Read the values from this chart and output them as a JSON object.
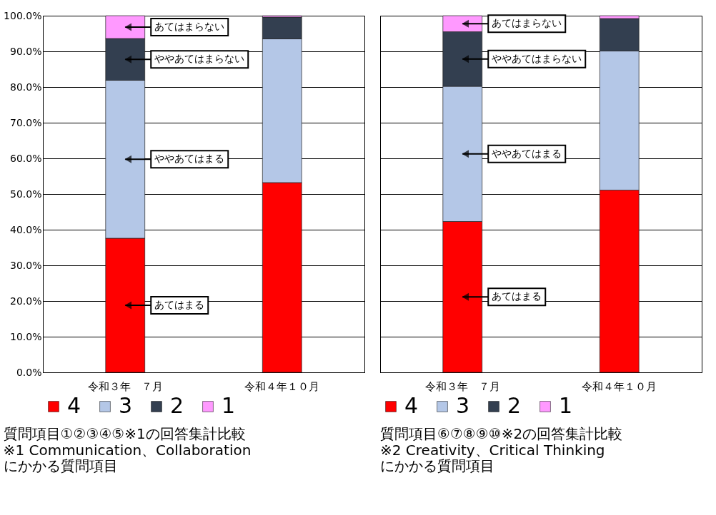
{
  "chart_data": [
    {
      "type": "bar",
      "stacked": true,
      "title": "質問項目①②③④⑤※1の回答集計比較",
      "subtitle": "※1 Communication、Collaboration\nにかかる質問項目",
      "categories": [
        "令和３年　７月",
        "令和４年１０月"
      ],
      "series": [
        {
          "name": "4",
          "color": "#ff0000",
          "values": [
            37.6,
            53.2
          ]
        },
        {
          "name": "3",
          "color": "#b4c7e7",
          "values": [
            44.3,
            40.3
          ]
        },
        {
          "name": "2",
          "color": "#333f50",
          "values": [
            11.7,
            6.1
          ]
        },
        {
          "name": "1",
          "color": "#ff99ff",
          "values": [
            6.4,
            0.4
          ]
        }
      ],
      "ylim": [
        0,
        100
      ],
      "yticks": [
        {
          "value": 0,
          "label": "0.0%"
        },
        {
          "value": 10,
          "label": "10.0%"
        },
        {
          "value": 20,
          "label": "20.0%"
        },
        {
          "value": 30,
          "label": "30.0%"
        },
        {
          "value": 40,
          "label": "40.0%"
        },
        {
          "value": 50,
          "label": "50.0%"
        },
        {
          "value": 60,
          "label": "60.0%"
        },
        {
          "value": 70,
          "label": "70.0%"
        },
        {
          "value": 80,
          "label": "80.0%"
        },
        {
          "value": 90,
          "label": "90.0%"
        },
        {
          "value": 100,
          "label": "100.0%"
        }
      ],
      "grid": "y",
      "legend": "bottom",
      "annotations": [
        "あてはまらない",
        "ややあてはまらない",
        "ややあてはまる",
        "あてはまる"
      ]
    },
    {
      "type": "bar",
      "stacked": true,
      "title": "質問項目⑥⑦⑧⑨⑩※2の回答集計比較",
      "subtitle": "※2 Creativity、Critical Thinking\nにかかる質問項目",
      "categories": [
        "令和３年　７月",
        "令和４年１０月"
      ],
      "series": [
        {
          "name": "4",
          "color": "#ff0000",
          "values": [
            42.3,
            51.1
          ]
        },
        {
          "name": "3",
          "color": "#b4c7e7",
          "values": [
            37.9,
            39.0
          ]
        },
        {
          "name": "2",
          "color": "#333f50",
          "values": [
            15.3,
            9.1
          ]
        },
        {
          "name": "1",
          "color": "#ff99ff",
          "values": [
            4.5,
            0.8
          ]
        }
      ],
      "ylim": [
        0,
        100
      ],
      "yticks": [
        0,
        10,
        20,
        30,
        40,
        50,
        60,
        70,
        80,
        90,
        100
      ],
      "grid": "y",
      "legend": "bottom",
      "tick_labels": "x",
      "annotations": [
        "あてはまらない",
        "ややあてはまらない",
        "ややあてはまる",
        "あてはまる"
      ]
    }
  ]
}
